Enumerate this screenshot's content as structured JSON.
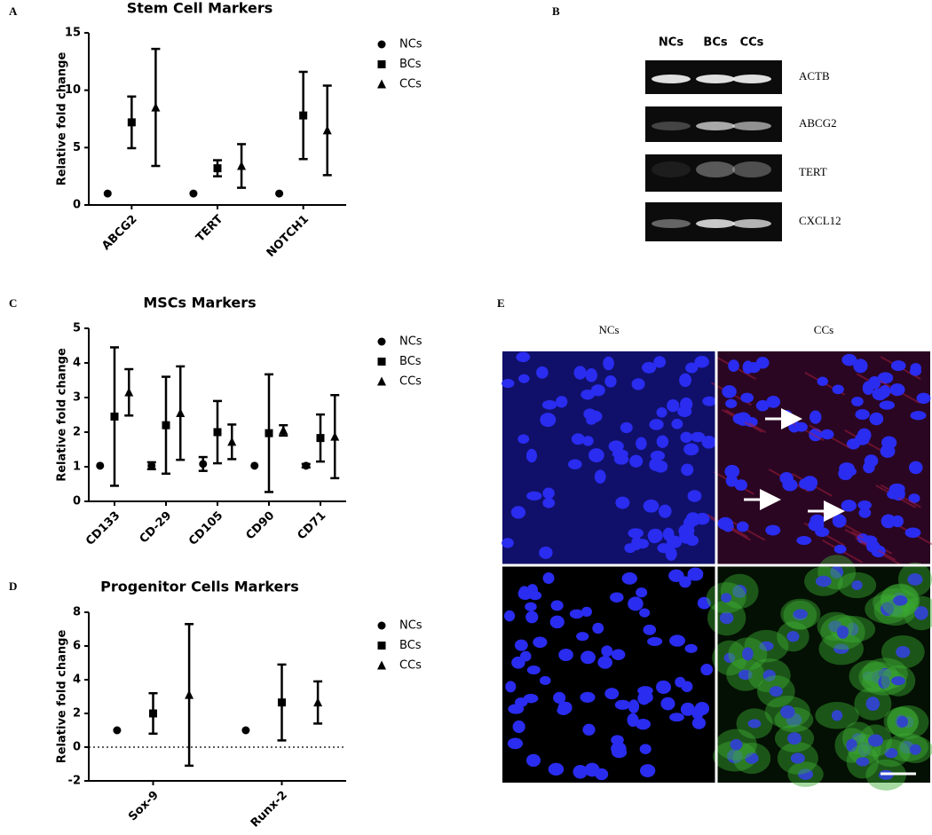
{
  "chart_data": [
    {
      "type": "errorbar",
      "panel": "A",
      "title": "Stem Cell Markers",
      "y_label": "Relative fold change",
      "categories": [
        "ABCG2",
        "TERT",
        "NOTCH1"
      ],
      "series": [
        {
          "name": "NCs",
          "color": "#000000",
          "marker": "circle",
          "values": [
            1,
            1,
            1
          ],
          "errors": [
            0,
            0,
            0
          ]
        },
        {
          "name": "BCs",
          "color": "#000000",
          "marker": "square",
          "values": [
            7.2,
            3.2,
            7.8
          ],
          "errors": [
            2.25,
            0.7,
            3.8
          ]
        },
        {
          "name": "CCs",
          "color": "#000000",
          "marker": "triangle",
          "values": [
            8.5,
            3.4,
            6.5
          ],
          "errors": [
            5.1,
            1.9,
            3.9
          ]
        }
      ],
      "ylim": [
        0,
        15
      ],
      "yticks": [
        0,
        5,
        10,
        15
      ]
    },
    {
      "type": "errorbar",
      "panel": "C",
      "title": "MSCs Markers",
      "y_label": "Relative fold change",
      "categories": [
        "CD133",
        "CD-29",
        "CD105",
        "CD90",
        "CD71"
      ],
      "series": [
        {
          "name": "NCs",
          "color": "#000000",
          "marker": "circle",
          "values": [
            1.03,
            1.03,
            1.08,
            1.03,
            1.03
          ],
          "errors": [
            0,
            0.1,
            0.2,
            0,
            0.05
          ]
        },
        {
          "name": "BCs",
          "color": "#000000",
          "marker": "square",
          "values": [
            2.45,
            2.2,
            2.0,
            1.97,
            1.83
          ],
          "errors": [
            2.0,
            1.4,
            0.9,
            1.7,
            0.68
          ]
        },
        {
          "name": "CCs",
          "color": "#000000",
          "marker": "triangle",
          "values": [
            3.15,
            2.55,
            1.72,
            2.05,
            1.87
          ],
          "errors": [
            0.67,
            1.35,
            0.5,
            0.15,
            1.2
          ]
        }
      ],
      "ylim": [
        0,
        5
      ],
      "yticks": [
        0,
        1,
        2,
        3,
        4,
        5
      ]
    },
    {
      "type": "errorbar",
      "panel": "D",
      "title": "Progenitor Cells Markers",
      "y_label": "Relative fold change",
      "categories": [
        "Sox-9",
        "Runx-2"
      ],
      "series": [
        {
          "name": "NCs",
          "color": "#000000",
          "marker": "circle",
          "values": [
            1,
            1
          ],
          "errors": [
            0,
            0
          ]
        },
        {
          "name": "BCs",
          "color": "#000000",
          "marker": "square",
          "values": [
            2.0,
            2.65
          ],
          "errors": [
            1.2,
            2.25
          ]
        },
        {
          "name": "CCs",
          "color": "#000000",
          "marker": "triangle",
          "values": [
            3.1,
            2.65
          ],
          "errors": [
            4.2,
            1.25
          ]
        }
      ],
      "ylim": [
        -2,
        8
      ],
      "yticks": [
        -2,
        0,
        2,
        4,
        6,
        8
      ],
      "zero_line": true
    }
  ],
  "gel": {
    "panel": "B",
    "lanes": [
      "NCs",
      "BCs",
      "CCs"
    ],
    "genes": [
      "ACTB",
      "ABCG2",
      "TERT",
      "CXCL12"
    ]
  },
  "microscopy": {
    "panel": "E",
    "columns": [
      "NCs",
      "CCs"
    ]
  }
}
